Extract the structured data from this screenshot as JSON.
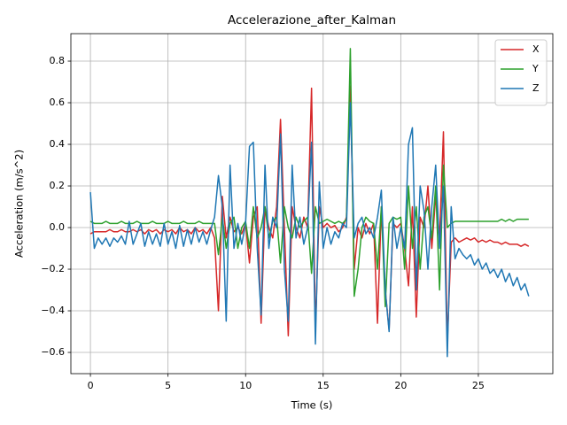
{
  "chart_data": {
    "type": "line",
    "title": "Accelerazione_after_Kalman",
    "x_label": "Time (s)",
    "y_label": "Acceleration (m/s^2)",
    "x": [
      0,
      0.25,
      0.5,
      0.75,
      1,
      1.25,
      1.5,
      1.75,
      2,
      2.25,
      2.5,
      2.75,
      3,
      3.25,
      3.5,
      3.75,
      4,
      4.25,
      4.5,
      4.75,
      5,
      5.25,
      5.5,
      5.75,
      6,
      6.25,
      6.5,
      6.75,
      7,
      7.25,
      7.5,
      7.75,
      8,
      8.25,
      8.5,
      8.75,
      9,
      9.25,
      9.5,
      9.75,
      10,
      10.25,
      10.5,
      10.75,
      11,
      11.25,
      11.5,
      11.75,
      12,
      12.25,
      12.5,
      12.75,
      13,
      13.25,
      13.5,
      13.75,
      14,
      14.25,
      14.5,
      14.75,
      15,
      15.25,
      15.5,
      15.75,
      16,
      16.25,
      16.5,
      16.75,
      17,
      17.25,
      17.5,
      17.75,
      18,
      18.25,
      18.5,
      18.75,
      19,
      19.25,
      19.5,
      19.75,
      20,
      20.25,
      20.5,
      20.75,
      21,
      21.25,
      21.5,
      21.75,
      22,
      22.25,
      22.5,
      22.75,
      23,
      23.25,
      23.5,
      23.75,
      24,
      24.25,
      24.5,
      24.75,
      25,
      25.25,
      25.5,
      25.75,
      26,
      26.25,
      26.5,
      26.75,
      27,
      27.25,
      27.5,
      27.75,
      28,
      28.25
    ],
    "series": [
      {
        "name": "X",
        "color": "#d62728",
        "values": [
          -0.03,
          -0.02,
          -0.02,
          -0.02,
          -0.02,
          -0.01,
          -0.02,
          -0.02,
          -0.01,
          -0.02,
          -0.02,
          -0.01,
          -0.02,
          -0.01,
          -0.03,
          -0.01,
          -0.02,
          -0.01,
          -0.03,
          -0.01,
          -0.02,
          -0.01,
          -0.03,
          0.0,
          -0.02,
          -0.01,
          -0.03,
          0.0,
          -0.02,
          -0.01,
          -0.03,
          0.0,
          -0.05,
          -0.4,
          0.15,
          -0.05,
          0.05,
          -0.02,
          0.0,
          -0.03,
          0.02,
          -0.17,
          0.05,
          0.1,
          -0.46,
          0.1,
          0.0,
          -0.05,
          0.1,
          0.52,
          0.0,
          -0.52,
          0.1,
          0.0,
          -0.05,
          0.05,
          0.0,
          0.67,
          -0.49,
          0.1,
          0.0,
          0.02,
          0.0,
          0.01,
          -0.02,
          0.0,
          0.05,
          0.68,
          -0.2,
          0.0,
          -0.05,
          0.02,
          -0.03,
          0.02,
          -0.46,
          0.1,
          -0.3,
          -0.49,
          0.02,
          0.0,
          0.02,
          -0.1,
          -0.28,
          0.1,
          -0.43,
          0.05,
          0.0,
          0.2,
          -0.1,
          0.15,
          -0.05,
          0.46,
          -0.55,
          -0.07,
          -0.05,
          -0.07,
          -0.06,
          -0.05,
          -0.06,
          -0.05,
          -0.07,
          -0.06,
          -0.07,
          -0.06,
          -0.07,
          -0.07,
          -0.08,
          -0.07,
          -0.08,
          -0.08,
          -0.08,
          -0.09,
          -0.08,
          -0.09
        ]
      },
      {
        "name": "Y",
        "color": "#2ca02c",
        "values": [
          0.03,
          0.02,
          0.02,
          0.02,
          0.03,
          0.02,
          0.02,
          0.02,
          0.03,
          0.02,
          0.02,
          0.02,
          0.03,
          0.02,
          0.02,
          0.02,
          0.03,
          0.02,
          0.02,
          0.02,
          0.03,
          0.02,
          0.02,
          0.02,
          0.03,
          0.02,
          0.02,
          0.02,
          0.03,
          0.02,
          0.02,
          0.02,
          0.02,
          -0.13,
          0.05,
          -0.1,
          0.02,
          0.05,
          -0.1,
          0.0,
          0.03,
          -0.1,
          0.1,
          -0.05,
          0.0,
          0.1,
          -0.05,
          0.03,
          0.05,
          -0.17,
          0.1,
          0.0,
          -0.05,
          0.05,
          0.0,
          0.03,
          0.05,
          -0.22,
          0.1,
          0.02,
          0.03,
          0.04,
          0.03,
          0.02,
          0.03,
          0.02,
          0.04,
          0.86,
          -0.33,
          -0.2,
          0.0,
          0.05,
          0.03,
          0.02,
          -0.2,
          0.1,
          -0.38,
          0.02,
          0.05,
          0.04,
          0.05,
          -0.2,
          0.2,
          -0.1,
          0.1,
          -0.2,
          0.05,
          0.1,
          -0.05,
          0.2,
          -0.3,
          0.3,
          0.0,
          0.02,
          0.03,
          0.03,
          0.03,
          0.03,
          0.03,
          0.03,
          0.03,
          0.03,
          0.03,
          0.03,
          0.03,
          0.03,
          0.04,
          0.03,
          0.04,
          0.03,
          0.04,
          0.04,
          0.04,
          0.04
        ]
      },
      {
        "name": "Z",
        "color": "#1f77b4",
        "values": [
          0.17,
          -0.1,
          -0.05,
          -0.08,
          -0.05,
          -0.09,
          -0.05,
          -0.07,
          -0.04,
          -0.08,
          0.03,
          -0.08,
          -0.03,
          0.02,
          -0.09,
          -0.02,
          -0.08,
          -0.03,
          -0.09,
          0.02,
          -0.08,
          -0.02,
          -0.1,
          0.01,
          -0.09,
          -0.01,
          -0.08,
          0.0,
          -0.07,
          -0.02,
          -0.08,
          -0.01,
          0.05,
          0.25,
          0.1,
          -0.45,
          0.3,
          -0.1,
          0.02,
          -0.08,
          0.02,
          0.39,
          0.41,
          -0.1,
          -0.42,
          0.3,
          -0.1,
          0.05,
          0.0,
          0.45,
          -0.2,
          -0.45,
          0.3,
          -0.05,
          0.05,
          -0.08,
          0.0,
          0.41,
          -0.56,
          0.22,
          -0.1,
          0.0,
          -0.08,
          -0.02,
          -0.05,
          0.02,
          0.0,
          0.6,
          -0.05,
          0.02,
          0.05,
          -0.03,
          0.0,
          -0.05,
          0.05,
          0.18,
          -0.3,
          -0.5,
          0.05,
          -0.1,
          0.0,
          -0.1,
          0.4,
          0.48,
          -0.3,
          0.2,
          0.08,
          -0.2,
          0.1,
          0.3,
          -0.1,
          0.2,
          -0.62,
          0.1,
          -0.15,
          -0.1,
          -0.13,
          -0.15,
          -0.13,
          -0.18,
          -0.15,
          -0.2,
          -0.17,
          -0.22,
          -0.2,
          -0.24,
          -0.2,
          -0.26,
          -0.22,
          -0.28,
          -0.24,
          -0.3,
          -0.27,
          -0.33
        ]
      }
    ],
    "xlim": [
      -1.26,
      29.8
    ],
    "xticks": [
      0,
      5,
      10,
      15,
      20,
      25
    ],
    "ylim": [
      -0.702,
      0.932
    ],
    "yticks": [
      {
        "value": -0.6,
        "label": "−0.6"
      },
      {
        "value": -0.4,
        "label": "−0.4"
      },
      {
        "value": -0.2,
        "label": "−0.2"
      },
      {
        "value": 0,
        "label": "0.0"
      },
      0.2,
      0.4,
      0.6,
      0.8
    ],
    "grid": true,
    "legend": "upper right"
  }
}
